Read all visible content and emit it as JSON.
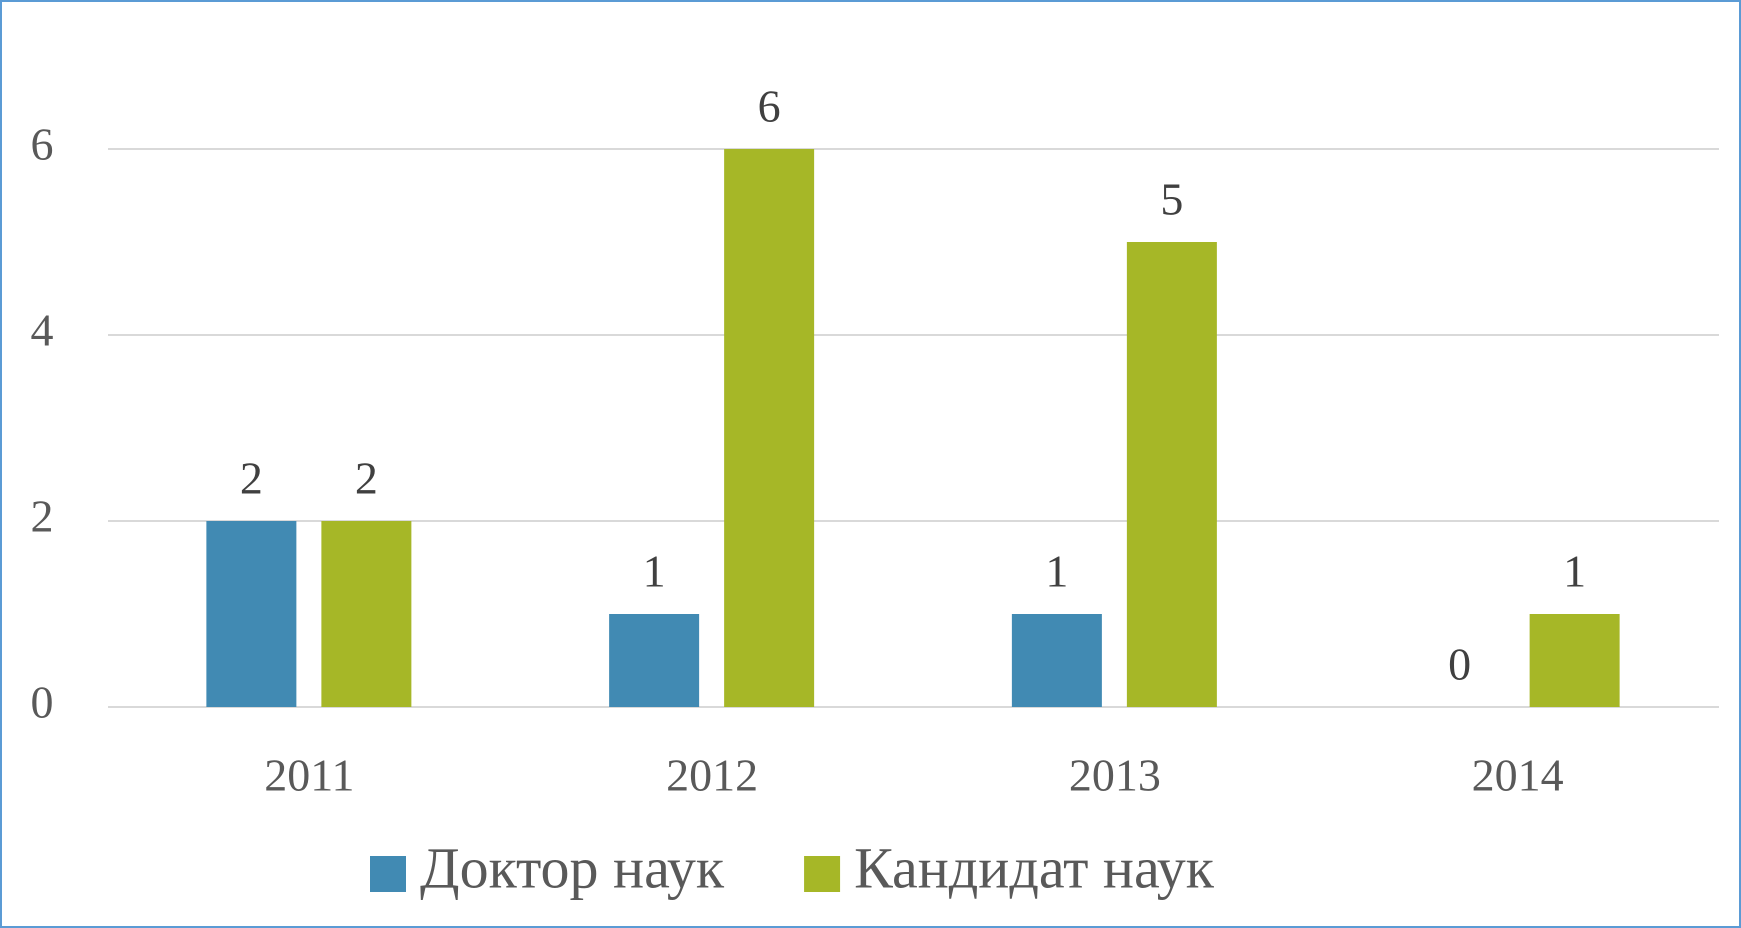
{
  "chart_data": {
    "type": "bar",
    "categories": [
      "2011",
      "2012",
      "2013",
      "2014"
    ],
    "series": [
      {
        "name": "Доктор наук",
        "color": "#418ab3",
        "values": [
          2,
          1,
          1,
          0
        ]
      },
      {
        "name": "Кандидат наук",
        "color": "#a6b727",
        "values": [
          2,
          6,
          5,
          1
        ]
      }
    ],
    "ylim": [
      0,
      6
    ],
    "yticks": [
      0,
      2,
      4,
      6
    ],
    "grid": true,
    "legend": "bottom"
  }
}
